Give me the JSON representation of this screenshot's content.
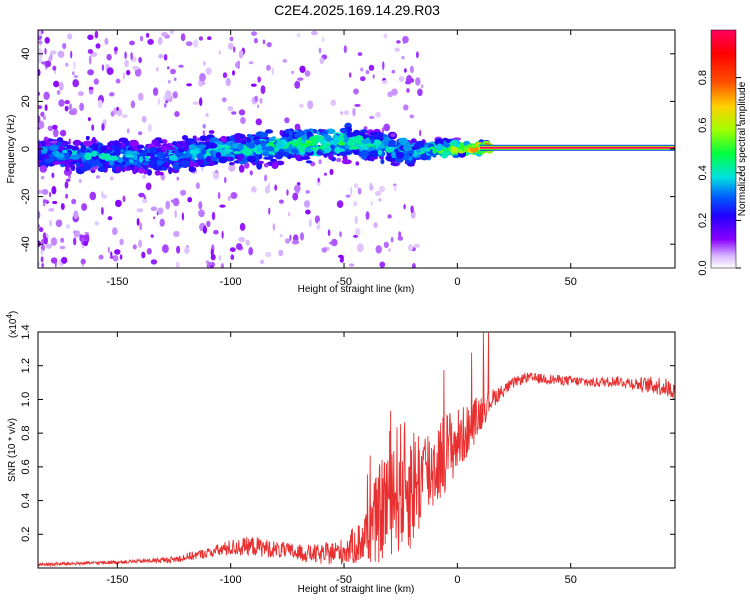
{
  "title": "C2E4.2025.169.14.29.R03",
  "chart_data": [
    {
      "type": "heatmap",
      "panel": "spectrogram",
      "xlabel": "Height of straight line (km)",
      "ylabel": "Frequency (Hz)",
      "xlim": [
        -185,
        96
      ],
      "ylim": [
        -50,
        50
      ],
      "xticks": [
        -150,
        -100,
        -50,
        0,
        50
      ],
      "yticks": [
        -40,
        -20,
        0,
        20,
        40
      ],
      "colorbar": {
        "label": "Normalized spectral amplitude",
        "range": [
          0,
          1
        ],
        "ticks": [
          0.0,
          0.2,
          0.4,
          0.6,
          0.8
        ],
        "tick_labels": [
          "0.0",
          "0.2",
          "0.4",
          "0.6",
          "0.8"
        ],
        "colormap": [
          "#ffffff",
          "#d8b8ff",
          "#8a00ff",
          "#2000ff",
          "#0060ff",
          "#00e0e0",
          "#00ff40",
          "#a0ff00",
          "#ffd000",
          "#ff5000",
          "#ff0000",
          "#ff0060"
        ]
      },
      "band": [
        {
          "x": -185,
          "f": -2,
          "amp": 0.3
        },
        {
          "x": -150,
          "f": -3,
          "amp": 0.35
        },
        {
          "x": -130,
          "f": -3,
          "amp": 0.3
        },
        {
          "x": -110,
          "f": -1,
          "amp": 0.35
        },
        {
          "x": -90,
          "f": 0,
          "amp": 0.4
        },
        {
          "x": -70,
          "f": 2,
          "amp": 0.45
        },
        {
          "x": -50,
          "f": 3,
          "amp": 0.45
        },
        {
          "x": -35,
          "f": 1,
          "amp": 0.4
        },
        {
          "x": -20,
          "f": -1,
          "amp": 0.35
        },
        {
          "x": -10,
          "f": 0,
          "amp": 0.45
        },
        {
          "x": 0,
          "f": 0,
          "amp": 0.6
        },
        {
          "x": 10,
          "f": 0.5,
          "amp": 0.8
        },
        {
          "x": 96,
          "f": 0.5,
          "amp": 1.0
        }
      ]
    },
    {
      "type": "line",
      "panel": "snr",
      "xlabel": "Height of straight line (km)",
      "ylabel": "SNR (10 * v/v)",
      "y_multiplier_label": "(x10",
      "y_multiplier_exponent": "4",
      "xlim": [
        -185,
        96
      ],
      "ylim": [
        0,
        1.4
      ],
      "xticks": [
        -150,
        -100,
        -50,
        0,
        50
      ],
      "yticks": [
        0.2,
        0.4,
        0.6,
        0.8,
        1.0,
        1.2,
        1.4
      ],
      "series": [
        {
          "name": "SNR",
          "color": "#e83030",
          "x": [
            -185,
            -160,
            -140,
            -125,
            -110,
            -100,
            -90,
            -80,
            -70,
            -60,
            -50,
            -42,
            -35,
            -30,
            -25,
            -20,
            -15,
            -10,
            -5,
            0,
            5,
            10,
            15,
            20,
            25,
            30,
            40,
            50,
            60,
            70,
            80,
            90,
            96
          ],
          "y": [
            0.02,
            0.03,
            0.04,
            0.05,
            0.09,
            0.12,
            0.13,
            0.11,
            0.09,
            0.08,
            0.1,
            0.16,
            0.3,
            0.45,
            0.48,
            0.48,
            0.55,
            0.6,
            0.7,
            0.75,
            0.82,
            0.92,
            1.0,
            1.05,
            1.1,
            1.13,
            1.12,
            1.11,
            1.1,
            1.11,
            1.09,
            1.08,
            1.05
          ],
          "noise": [
            0.01,
            0.01,
            0.01,
            0.02,
            0.03,
            0.05,
            0.06,
            0.05,
            0.05,
            0.06,
            0.08,
            0.14,
            0.28,
            0.38,
            0.4,
            0.38,
            0.3,
            0.26,
            0.24,
            0.2,
            0.15,
            0.12,
            0.06,
            0.04,
            0.03,
            0.03,
            0.03,
            0.03,
            0.03,
            0.03,
            0.04,
            0.06,
            0.05
          ]
        }
      ]
    }
  ]
}
